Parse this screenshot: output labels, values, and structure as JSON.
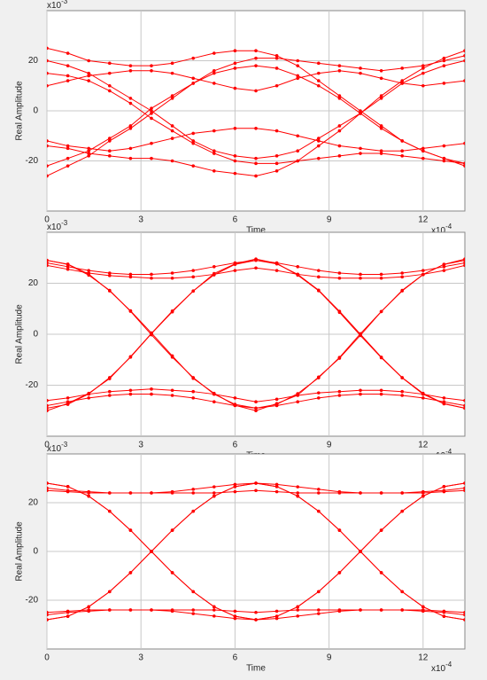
{
  "chart_data": [
    {
      "type": "line",
      "color": "#ff0000",
      "markers": true,
      "grid": true,
      "xlabel": "Time",
      "ylabel": "Real Amplitude",
      "x_scale": {
        "base": "x10",
        "exponent": "-4"
      },
      "y_scale": {
        "base": "x10",
        "exponent": "-3"
      },
      "x": [
        0,
        0.667,
        1.333,
        2,
        2.667,
        3.333,
        4,
        4.667,
        5.333,
        6,
        6.667,
        7.333,
        8,
        8.667,
        9.333,
        10,
        10.667,
        11.333,
        12,
        12.667,
        13.333
      ],
      "xlim": [
        0,
        13.333
      ],
      "xticks": [
        0,
        3,
        6,
        9,
        12
      ],
      "ylim": [
        -40,
        40
      ],
      "yticks": [
        -20,
        0,
        20
      ],
      "series": [
        {
          "values": [
            20,
            18,
            15,
            10,
            5,
            0,
            -6,
            -12,
            -16,
            -18,
            -19,
            -18,
            -16,
            -11,
            -6,
            -1,
            5,
            11,
            15,
            18,
            20
          ]
        },
        {
          "values": [
            -22,
            -19,
            -16,
            -11,
            -6,
            1,
            6,
            11,
            15,
            17,
            18,
            17,
            14,
            10,
            5,
            -1,
            -7,
            -12,
            -16,
            -19,
            -22
          ]
        },
        {
          "values": [
            10,
            12,
            14,
            15,
            16,
            16,
            15,
            13,
            11,
            9,
            8,
            10,
            13,
            15,
            16,
            15,
            13,
            11,
            10,
            11,
            12
          ]
        },
        {
          "values": [
            -12,
            -14,
            -15,
            -16,
            -15,
            -13,
            -11,
            -9,
            -8,
            -7,
            -7,
            -8,
            -10,
            -12,
            -14,
            -15,
            -16,
            -16,
            -15,
            -14,
            -13
          ]
        },
        {
          "values": [
            25,
            23,
            20,
            19,
            18,
            18,
            19,
            21,
            23,
            24,
            24,
            22,
            18,
            12,
            6,
            0,
            -6,
            -12,
            -16,
            -19,
            -21
          ]
        },
        {
          "values": [
            -26,
            -22,
            -18,
            -12,
            -7,
            -1,
            5,
            11,
            16,
            19,
            21,
            21,
            20,
            19,
            18,
            17,
            16,
            17,
            18,
            20,
            22
          ]
        },
        {
          "values": [
            15,
            14,
            12,
            8,
            3,
            -3,
            -8,
            -13,
            -17,
            -20,
            -21,
            -21,
            -20,
            -19,
            -18,
            -17,
            -17,
            -18,
            -19,
            -20,
            -21
          ]
        },
        {
          "values": [
            -14,
            -15,
            -17,
            -18,
            -19,
            -19,
            -20,
            -22,
            -24,
            -25,
            -26,
            -24,
            -20,
            -14,
            -8,
            -1,
            6,
            12,
            17,
            21,
            24
          ]
        }
      ]
    },
    {
      "type": "line",
      "color": "#ff0000",
      "markers": true,
      "grid": true,
      "xlabel": "Time",
      "ylabel": "Real Amplitude",
      "x_scale": {
        "base": "x10",
        "exponent": "-4"
      },
      "y_scale": {
        "base": "x10",
        "exponent": "-3"
      },
      "x": [
        0,
        0.667,
        1.333,
        2,
        2.667,
        3.333,
        4,
        4.667,
        5.333,
        6,
        6.667,
        7.333,
        8,
        8.667,
        9.333,
        10,
        10.667,
        11.333,
        12,
        12.667,
        13.333
      ],
      "xlim": [
        0,
        13.333
      ],
      "xticks": [
        0,
        3,
        6,
        9,
        12
      ],
      "ylim": [
        -40,
        40
      ],
      "yticks": [
        -20,
        0,
        20
      ],
      "series": [
        {
          "values": [
            29,
            27.5,
            23.6,
            17,
            9.2,
            0.5,
            -8.5,
            -17.3,
            -23.2,
            -27.9,
            -30,
            -27.2,
            -23.9,
            -16.8,
            -9.4,
            -0.4,
            8.9,
            17.2,
            23.4,
            27.4,
            29.5
          ]
        },
        {
          "values": [
            -30,
            -27.1,
            -23.2,
            -17.4,
            -8.8,
            0.3,
            9.1,
            16.9,
            23.8,
            27.6,
            29.5,
            27.8,
            23.2,
            17.1,
            8.6,
            -0.5,
            -9.2,
            -17.1,
            -23.5,
            -27.3,
            -29
          ]
        },
        {
          "values": [
            27,
            25.5,
            24,
            23,
            22.5,
            22,
            22,
            22.5,
            23.5,
            25,
            26,
            25,
            23.5,
            22.5,
            22,
            22,
            22,
            22.5,
            23.5,
            25,
            27
          ]
        },
        {
          "values": [
            -26,
            -25,
            -23.5,
            -22.5,
            -22,
            -21.5,
            -22,
            -22.5,
            -23.5,
            -25,
            -26.5,
            -25.5,
            -24,
            -23,
            -22.5,
            -22,
            -22,
            -22.5,
            -23.5,
            -25,
            -26
          ]
        },
        {
          "values": [
            28,
            26.5,
            25,
            24,
            23.5,
            23.5,
            24,
            25,
            26.5,
            28,
            29,
            27.6,
            23.5,
            17.3,
            9,
            0,
            -9,
            -17,
            -23.2,
            -27.2,
            -29
          ]
        },
        {
          "values": [
            -29,
            -27.5,
            -23.4,
            -17,
            -9,
            0.2,
            8.8,
            17,
            23.3,
            27.4,
            29,
            28,
            26.5,
            25,
            24,
            23.5,
            23.5,
            24,
            25,
            26.5,
            28
          ]
        },
        {
          "values": [
            29,
            27.4,
            23.2,
            17.2,
            9,
            -0.2,
            -9,
            -17,
            -23.5,
            -27.5,
            -29,
            -28,
            -26.5,
            -25,
            -24,
            -23.5,
            -23.5,
            -24,
            -25,
            -26.5,
            -28
          ]
        },
        {
          "values": [
            -28,
            -26.5,
            -25,
            -24,
            -23.5,
            -23.5,
            -24,
            -25,
            -26.5,
            -28,
            -29,
            -27.5,
            -23.3,
            -17.1,
            -9.1,
            0.2,
            8.9,
            17,
            23.4,
            27.4,
            29
          ]
        }
      ]
    },
    {
      "type": "line",
      "color": "#ff0000",
      "markers": true,
      "grid": true,
      "xlabel": "Time",
      "ylabel": "Real Amplitude",
      "x_scale": {
        "base": "x10",
        "exponent": "-4"
      },
      "y_scale": {
        "base": "x10",
        "exponent": "-3"
      },
      "x": [
        0,
        0.667,
        1.333,
        2,
        2.667,
        3.333,
        4,
        4.667,
        5.333,
        6,
        6.667,
        7.333,
        8,
        8.667,
        9.333,
        10,
        10.667,
        11.333,
        12,
        12.667,
        13.333
      ],
      "xlim": [
        0,
        13.333
      ],
      "xticks": [
        0,
        3,
        6,
        9,
        12
      ],
      "ylim": [
        -40,
        40
      ],
      "yticks": [
        -20,
        0,
        20
      ],
      "series": [
        {
          "values": [
            28,
            26.6,
            22.7,
            16.5,
            8.7,
            0,
            -8.7,
            -16.5,
            -22.7,
            -26.6,
            -28,
            -26.6,
            -22.7,
            -16.5,
            -8.7,
            0,
            8.7,
            16.5,
            22.7,
            26.6,
            28
          ]
        },
        {
          "values": [
            -28,
            -26.6,
            -22.7,
            -16.5,
            -8.7,
            0,
            8.7,
            16.5,
            22.7,
            26.6,
            28,
            26.6,
            22.7,
            16.5,
            8.7,
            0,
            -8.7,
            -16.5,
            -22.7,
            -26.6,
            -28
          ]
        },
        {
          "values": [
            26,
            25,
            24.5,
            24,
            24,
            24,
            24,
            24,
            24,
            24.5,
            25,
            24.5,
            24,
            24,
            24,
            24,
            24,
            24,
            24.5,
            25,
            26
          ]
        },
        {
          "values": [
            -26,
            -25,
            -24.5,
            -24,
            -24,
            -24,
            -24,
            -24,
            -24,
            -24.5,
            -25,
            -24.5,
            -24,
            -24,
            -24,
            -24,
            -24,
            -24,
            -24.5,
            -25,
            -26
          ]
        },
        {
          "values": [
            25,
            24.5,
            24,
            24,
            24,
            24,
            24.5,
            25.5,
            26.5,
            27.5,
            28,
            26.6,
            22.7,
            16.5,
            8.7,
            0,
            -8.7,
            -16.5,
            -22.7,
            -26.6,
            -28
          ]
        },
        {
          "values": [
            -28,
            -26.6,
            -22.7,
            -16.5,
            -8.7,
            0,
            8.7,
            16.5,
            22.7,
            26.6,
            28,
            27.5,
            26.5,
            25.5,
            24.5,
            24,
            24,
            24,
            24,
            24.5,
            25
          ]
        },
        {
          "values": [
            28,
            26.6,
            22.7,
            16.5,
            8.7,
            0,
            -8.7,
            -16.5,
            -22.7,
            -26.6,
            -28,
            -27.5,
            -26.5,
            -25.5,
            -24.5,
            -24,
            -24,
            -24,
            -24,
            -24.5,
            -25
          ]
        },
        {
          "values": [
            -25,
            -24.5,
            -24,
            -24,
            -24,
            -24,
            -24.5,
            -25.5,
            -26.5,
            -27.5,
            -28,
            -26.6,
            -22.7,
            -16.5,
            -8.7,
            0,
            8.7,
            16.5,
            22.7,
            26.6,
            28
          ]
        }
      ]
    }
  ]
}
